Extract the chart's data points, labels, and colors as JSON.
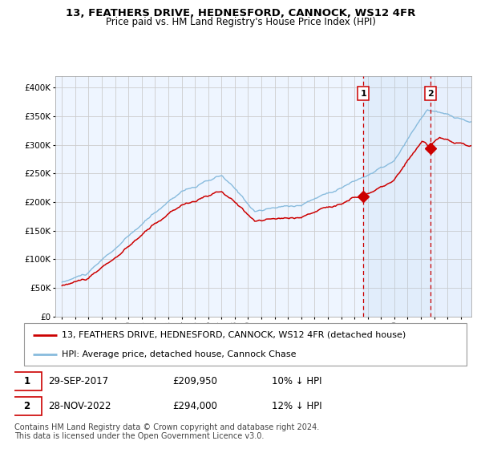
{
  "title": "13, FEATHERS DRIVE, HEDNESFORD, CANNOCK, WS12 4FR",
  "subtitle": "Price paid vs. HM Land Registry's House Price Index (HPI)",
  "ylim": [
    0,
    420000
  ],
  "yticks": [
    0,
    50000,
    100000,
    150000,
    200000,
    250000,
    300000,
    350000,
    400000
  ],
  "ytick_labels": [
    "£0",
    "£50K",
    "£100K",
    "£150K",
    "£200K",
    "£250K",
    "£300K",
    "£350K",
    "£400K"
  ],
  "hpi_color": "#88bbdd",
  "price_color": "#cc0000",
  "marker_color": "#cc0000",
  "vline_color": "#cc0000",
  "shade_color": "#ddeeff",
  "grid_color": "#cccccc",
  "background_color": "#ffffff",
  "sale1_price": 209950,
  "sale1_price_str": "£209,950",
  "sale1_date": "29-SEP-2017",
  "sale1_hpi": "10% ↓ HPI",
  "sale2_price": 294000,
  "sale2_price_str": "£294,000",
  "sale2_date": "28-NOV-2022",
  "sale2_hpi": "12% ↓ HPI",
  "legend_line1": "13, FEATHERS DRIVE, HEDNESFORD, CANNOCK, WS12 4FR (detached house)",
  "legend_line2": "HPI: Average price, detached house, Cannock Chase",
  "footer": "Contains HM Land Registry data © Crown copyright and database right 2024.\nThis data is licensed under the Open Government Licence v3.0.",
  "title_fontsize": 9.5,
  "subtitle_fontsize": 8.5,
  "tick_fontsize": 7.5,
  "legend_fontsize": 8.0,
  "footer_fontsize": 7.0
}
